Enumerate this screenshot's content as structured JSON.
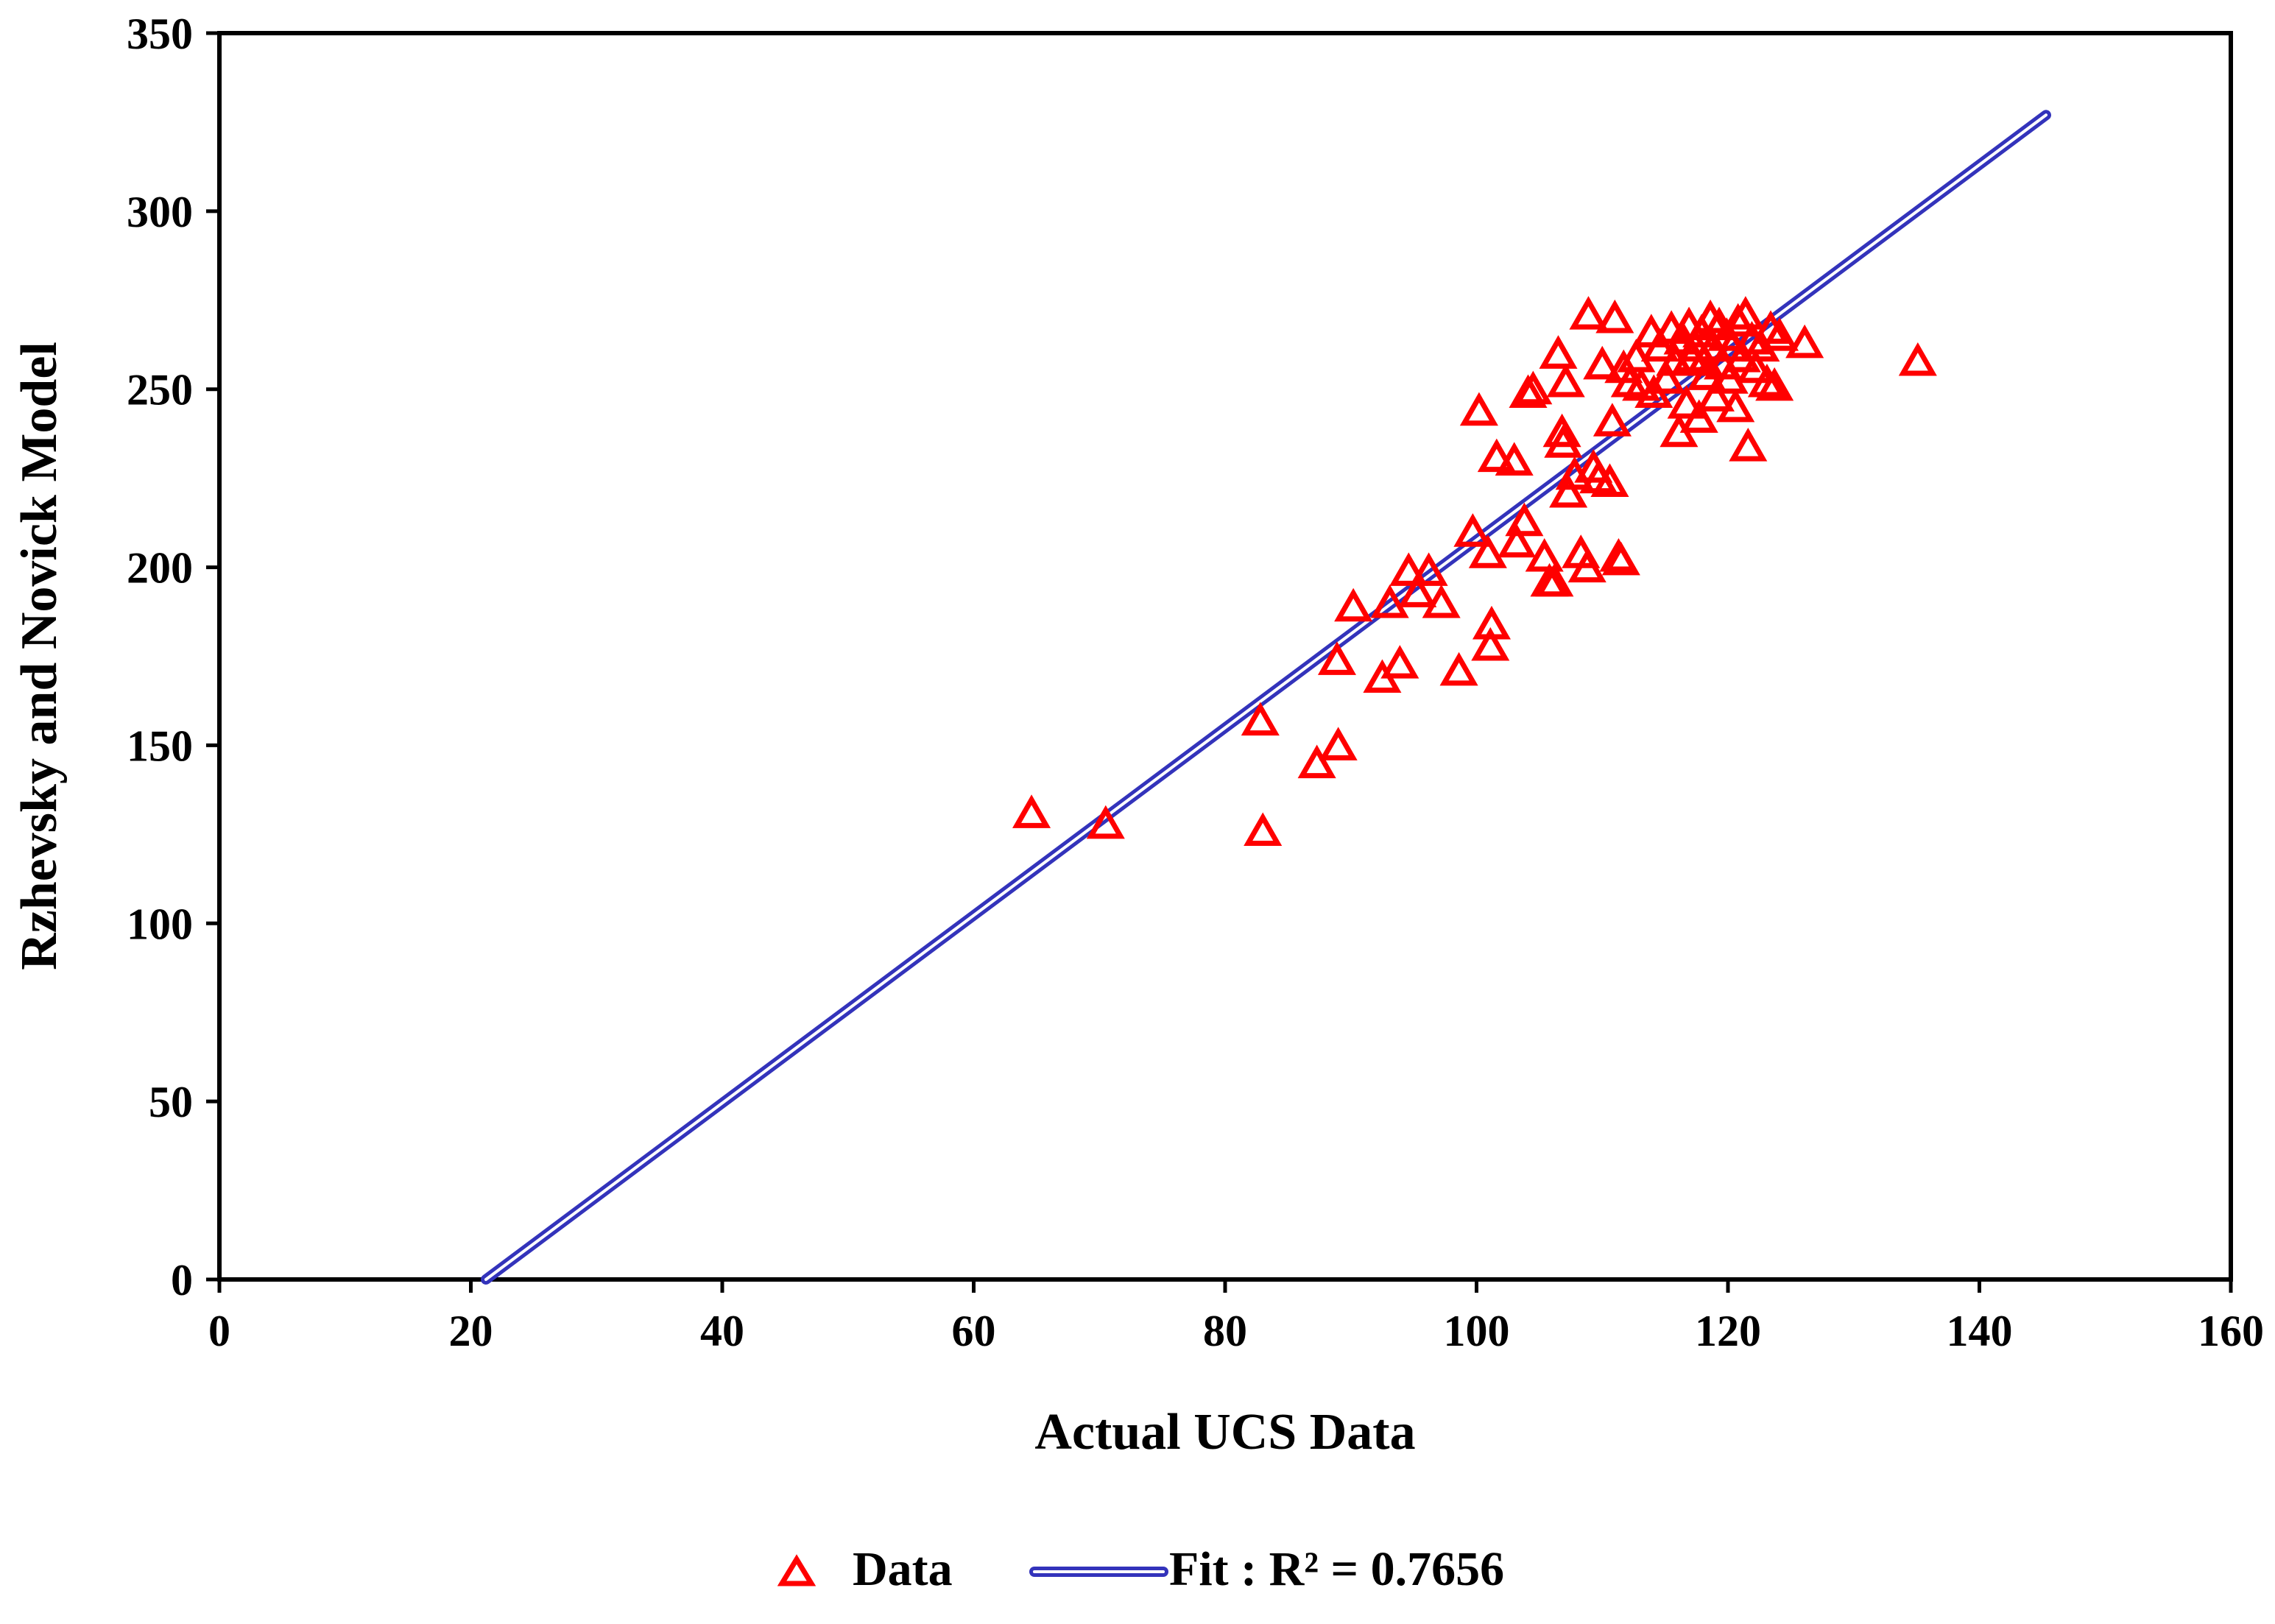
{
  "chart_data": {
    "type": "scatter",
    "title": "",
    "xlabel": "Actual UCS Data",
    "ylabel": "Rzhevsky and Novick Model",
    "xlim": [
      0,
      160
    ],
    "ylim": [
      0,
      350
    ],
    "xticks": [
      0,
      20,
      40,
      60,
      80,
      100,
      120,
      140,
      160
    ],
    "yticks": [
      0,
      50,
      100,
      150,
      200,
      250,
      300,
      350
    ],
    "grid": false,
    "legend_position": "bottom",
    "colors": {
      "data": "#ff0000",
      "fit": "#3333bb",
      "axis": "#000000"
    },
    "series": [
      {
        "name": "Data",
        "kind": "scatter",
        "marker": "triangle-open",
        "points": [
          [
            64.6,
            131
          ],
          [
            70.5,
            128
          ],
          [
            82.8,
            157
          ],
          [
            83.0,
            126
          ],
          [
            87.3,
            145
          ],
          [
            89.0,
            150
          ],
          [
            88.9,
            174
          ],
          [
            90.2,
            189
          ],
          [
            92.5,
            169
          ],
          [
            93.1,
            190
          ],
          [
            93.9,
            173
          ],
          [
            94.6,
            199
          ],
          [
            95.3,
            193
          ],
          [
            96.2,
            199
          ],
          [
            97.2,
            190
          ],
          [
            98.6,
            171
          ],
          [
            99.7,
            210
          ],
          [
            100.2,
            244
          ],
          [
            100.9,
            204
          ],
          [
            101.2,
            184
          ],
          [
            101.1,
            178
          ],
          [
            101.6,
            231
          ],
          [
            103.0,
            230
          ],
          [
            103.2,
            207
          ],
          [
            103.8,
            213
          ],
          [
            104.1,
            249
          ],
          [
            104.5,
            250
          ],
          [
            105.4,
            203
          ],
          [
            105.8,
            196
          ],
          [
            106.2,
            196
          ],
          [
            106.5,
            260
          ],
          [
            106.8,
            238
          ],
          [
            106.9,
            235
          ],
          [
            107.1,
            252
          ],
          [
            107.3,
            221
          ],
          [
            107.8,
            226
          ],
          [
            108.3,
            204
          ],
          [
            108.8,
            200
          ],
          [
            108.9,
            271
          ],
          [
            109.3,
            228
          ],
          [
            109.7,
            225
          ],
          [
            110.0,
            257
          ],
          [
            110.6,
            224
          ],
          [
            110.8,
            241
          ],
          [
            111.0,
            270
          ],
          [
            111.3,
            203
          ],
          [
            111.5,
            202
          ],
          [
            111.7,
            256
          ],
          [
            112.2,
            252
          ],
          [
            112.7,
            259
          ],
          [
            113.1,
            251
          ],
          [
            113.9,
            266
          ],
          [
            114.1,
            249
          ],
          [
            114.6,
            262
          ],
          [
            115.1,
            253
          ],
          [
            115.5,
            267
          ],
          [
            115.8,
            258
          ],
          [
            116.1,
            238
          ],
          [
            116.4,
            264
          ],
          [
            116.7,
            246
          ],
          [
            116.9,
            268
          ],
          [
            117.1,
            259
          ],
          [
            117.4,
            262
          ],
          [
            117.7,
            242
          ],
          [
            117.9,
            266
          ],
          [
            118.1,
            258
          ],
          [
            118.3,
            254
          ],
          [
            118.6,
            270
          ],
          [
            118.8,
            262
          ],
          [
            119.0,
            248
          ],
          [
            119.3,
            268
          ],
          [
            119.6,
            257
          ],
          [
            119.9,
            265
          ],
          [
            120.1,
            253
          ],
          [
            120.3,
            262
          ],
          [
            120.6,
            245
          ],
          [
            120.8,
            269
          ],
          [
            121.1,
            259
          ],
          [
            121.4,
            271
          ],
          [
            121.6,
            234
          ],
          [
            121.9,
            264
          ],
          [
            122.2,
            256
          ],
          [
            122.6,
            262
          ],
          [
            123.1,
            252
          ],
          [
            123.4,
            267
          ],
          [
            123.7,
            251
          ],
          [
            124.1,
            265
          ],
          [
            126.1,
            263
          ],
          [
            135.1,
            258
          ]
        ]
      },
      {
        "name": "Fit :  R² = 0.7656",
        "kind": "line",
        "style": "double-line",
        "points": [
          [
            21.2,
            0
          ],
          [
            145.3,
            327
          ]
        ]
      }
    ],
    "legend": {
      "data_label": "Data",
      "fit_label": "Fit :  R² = 0.7656"
    }
  }
}
